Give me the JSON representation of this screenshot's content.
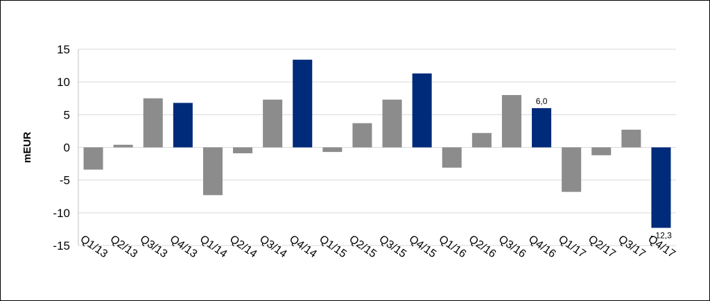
{
  "chart_data": {
    "type": "bar",
    "ylabel": "mEUR",
    "xlabel": "",
    "ylim": [
      -15,
      15
    ],
    "ytick_step": 5,
    "grid": true,
    "categories": [
      "Q1/13",
      "Q2/13",
      "Q3/13",
      "Q4/13",
      "Q1/14",
      "Q2/14",
      "Q3/14",
      "Q4/14",
      "Q1/15",
      "Q2/15",
      "Q3/15",
      "Q4/15",
      "Q1/16",
      "Q2/16",
      "Q3/16",
      "Q4/16",
      "Q1/17",
      "Q2/17",
      "Q3/17",
      "Q4/17"
    ],
    "values": [
      -3.4,
      0.4,
      7.5,
      6.8,
      -7.3,
      -0.9,
      7.3,
      13.4,
      -0.7,
      3.7,
      7.3,
      11.3,
      -3.1,
      2.2,
      8.0,
      6.0,
      -6.8,
      -1.2,
      2.7,
      -12.3
    ],
    "highlight": [
      false,
      false,
      false,
      true,
      false,
      false,
      false,
      true,
      false,
      false,
      false,
      true,
      false,
      false,
      false,
      true,
      false,
      false,
      false,
      true
    ],
    "colors": {
      "normal": "#8c8c8c",
      "highlight": "#002a7a",
      "grid": "#d9d9d9"
    },
    "data_labels": [
      {
        "index": 15,
        "text": "6,0"
      },
      {
        "index": 19,
        "text": "- 12,3"
      }
    ]
  }
}
